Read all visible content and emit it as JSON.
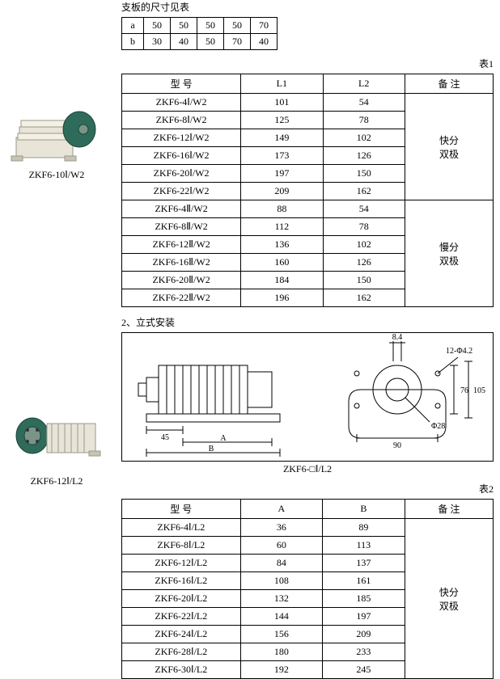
{
  "dims_caption": "支板的尺寸见表",
  "dims": {
    "headers": [
      "a",
      "b"
    ],
    "cols": [
      50,
      50,
      50,
      50,
      70
    ],
    "rows": [
      [
        "a",
        50,
        50,
        50,
        50,
        70
      ],
      [
        "b",
        30,
        40,
        50,
        70,
        40
      ]
    ]
  },
  "table1_label": "表1",
  "table1": {
    "columns": [
      "型  号",
      "L1",
      "L2",
      "备  注"
    ],
    "groups": [
      {
        "note_lines": [
          "快分",
          "双极"
        ],
        "rows": [
          {
            "model": "ZKF6-4Ⅰ/W2",
            "l1": 101,
            "l2": 54
          },
          {
            "model": "ZKF6-8Ⅰ/W2",
            "l1": 125,
            "l2": 78
          },
          {
            "model": "ZKF6-12Ⅰ/W2",
            "l1": 149,
            "l2": 102
          },
          {
            "model": "ZKF6-16Ⅰ/W2",
            "l1": 173,
            "l2": 126
          },
          {
            "model": "ZKF6-20Ⅰ/W2",
            "l1": 197,
            "l2": 150
          },
          {
            "model": "ZKF6-22Ⅰ/W2",
            "l1": 209,
            "l2": 162
          }
        ]
      },
      {
        "note_lines": [
          "慢分",
          "双极"
        ],
        "rows": [
          {
            "model": "ZKF6-4Ⅱ/W2",
            "l1": 88,
            "l2": 54
          },
          {
            "model": "ZKF6-8Ⅱ/W2",
            "l1": 112,
            "l2": 78
          },
          {
            "model": "ZKF6-12Ⅱ/W2",
            "l1": 136,
            "l2": 102
          },
          {
            "model": "ZKF6-16Ⅱ/W2",
            "l1": 160,
            "l2": 126
          },
          {
            "model": "ZKF6-20Ⅱ/W2",
            "l1": 184,
            "l2": 150
          },
          {
            "model": "ZKF6-22Ⅱ/W2",
            "l1": 196,
            "l2": 162
          }
        ]
      }
    ]
  },
  "section2_heading": "2、立式安装",
  "drawing": {
    "dims_labels": [
      "8.4",
      "12-Φ4.2",
      "105",
      "76",
      "Φ28",
      "90",
      "45",
      "A",
      "B"
    ],
    "caption": "ZKF6-□Ⅰ/L2"
  },
  "table2_label": "表2",
  "table2": {
    "columns": [
      "型  号",
      "A",
      "B",
      "备  注"
    ],
    "note_lines": [
      "快分",
      "双极"
    ],
    "rows": [
      {
        "model": "ZKF6-4Ⅰ/L2",
        "a": 36,
        "b": 89
      },
      {
        "model": "ZKF6-8Ⅰ/L2",
        "a": 60,
        "b": 113
      },
      {
        "model": "ZKF6-12Ⅰ/L2",
        "a": 84,
        "b": 137
      },
      {
        "model": "ZKF6-16Ⅰ/L2",
        "a": 108,
        "b": 161
      },
      {
        "model": "ZKF6-20Ⅰ/L2",
        "a": 132,
        "b": 185
      },
      {
        "model": "ZKF6-22Ⅰ/L2",
        "a": 144,
        "b": 197
      },
      {
        "model": "ZKF6-24Ⅰ/L2",
        "a": 156,
        "b": 209
      },
      {
        "model": "ZKF6-28Ⅰ/L2",
        "a": 180,
        "b": 233
      },
      {
        "model": "ZKF6-30Ⅰ/L2",
        "a": 192,
        "b": 245
      }
    ]
  },
  "left_thumbs": [
    {
      "label": "ZKF6-10Ⅰ/W2"
    },
    {
      "label": "ZKF6-12Ⅰ/L2"
    }
  ],
  "colors": {
    "line": "#000000",
    "device_body": "#2f6b5a",
    "device_base": "#e8e4d8",
    "device_shade": "#9a9a8a"
  }
}
